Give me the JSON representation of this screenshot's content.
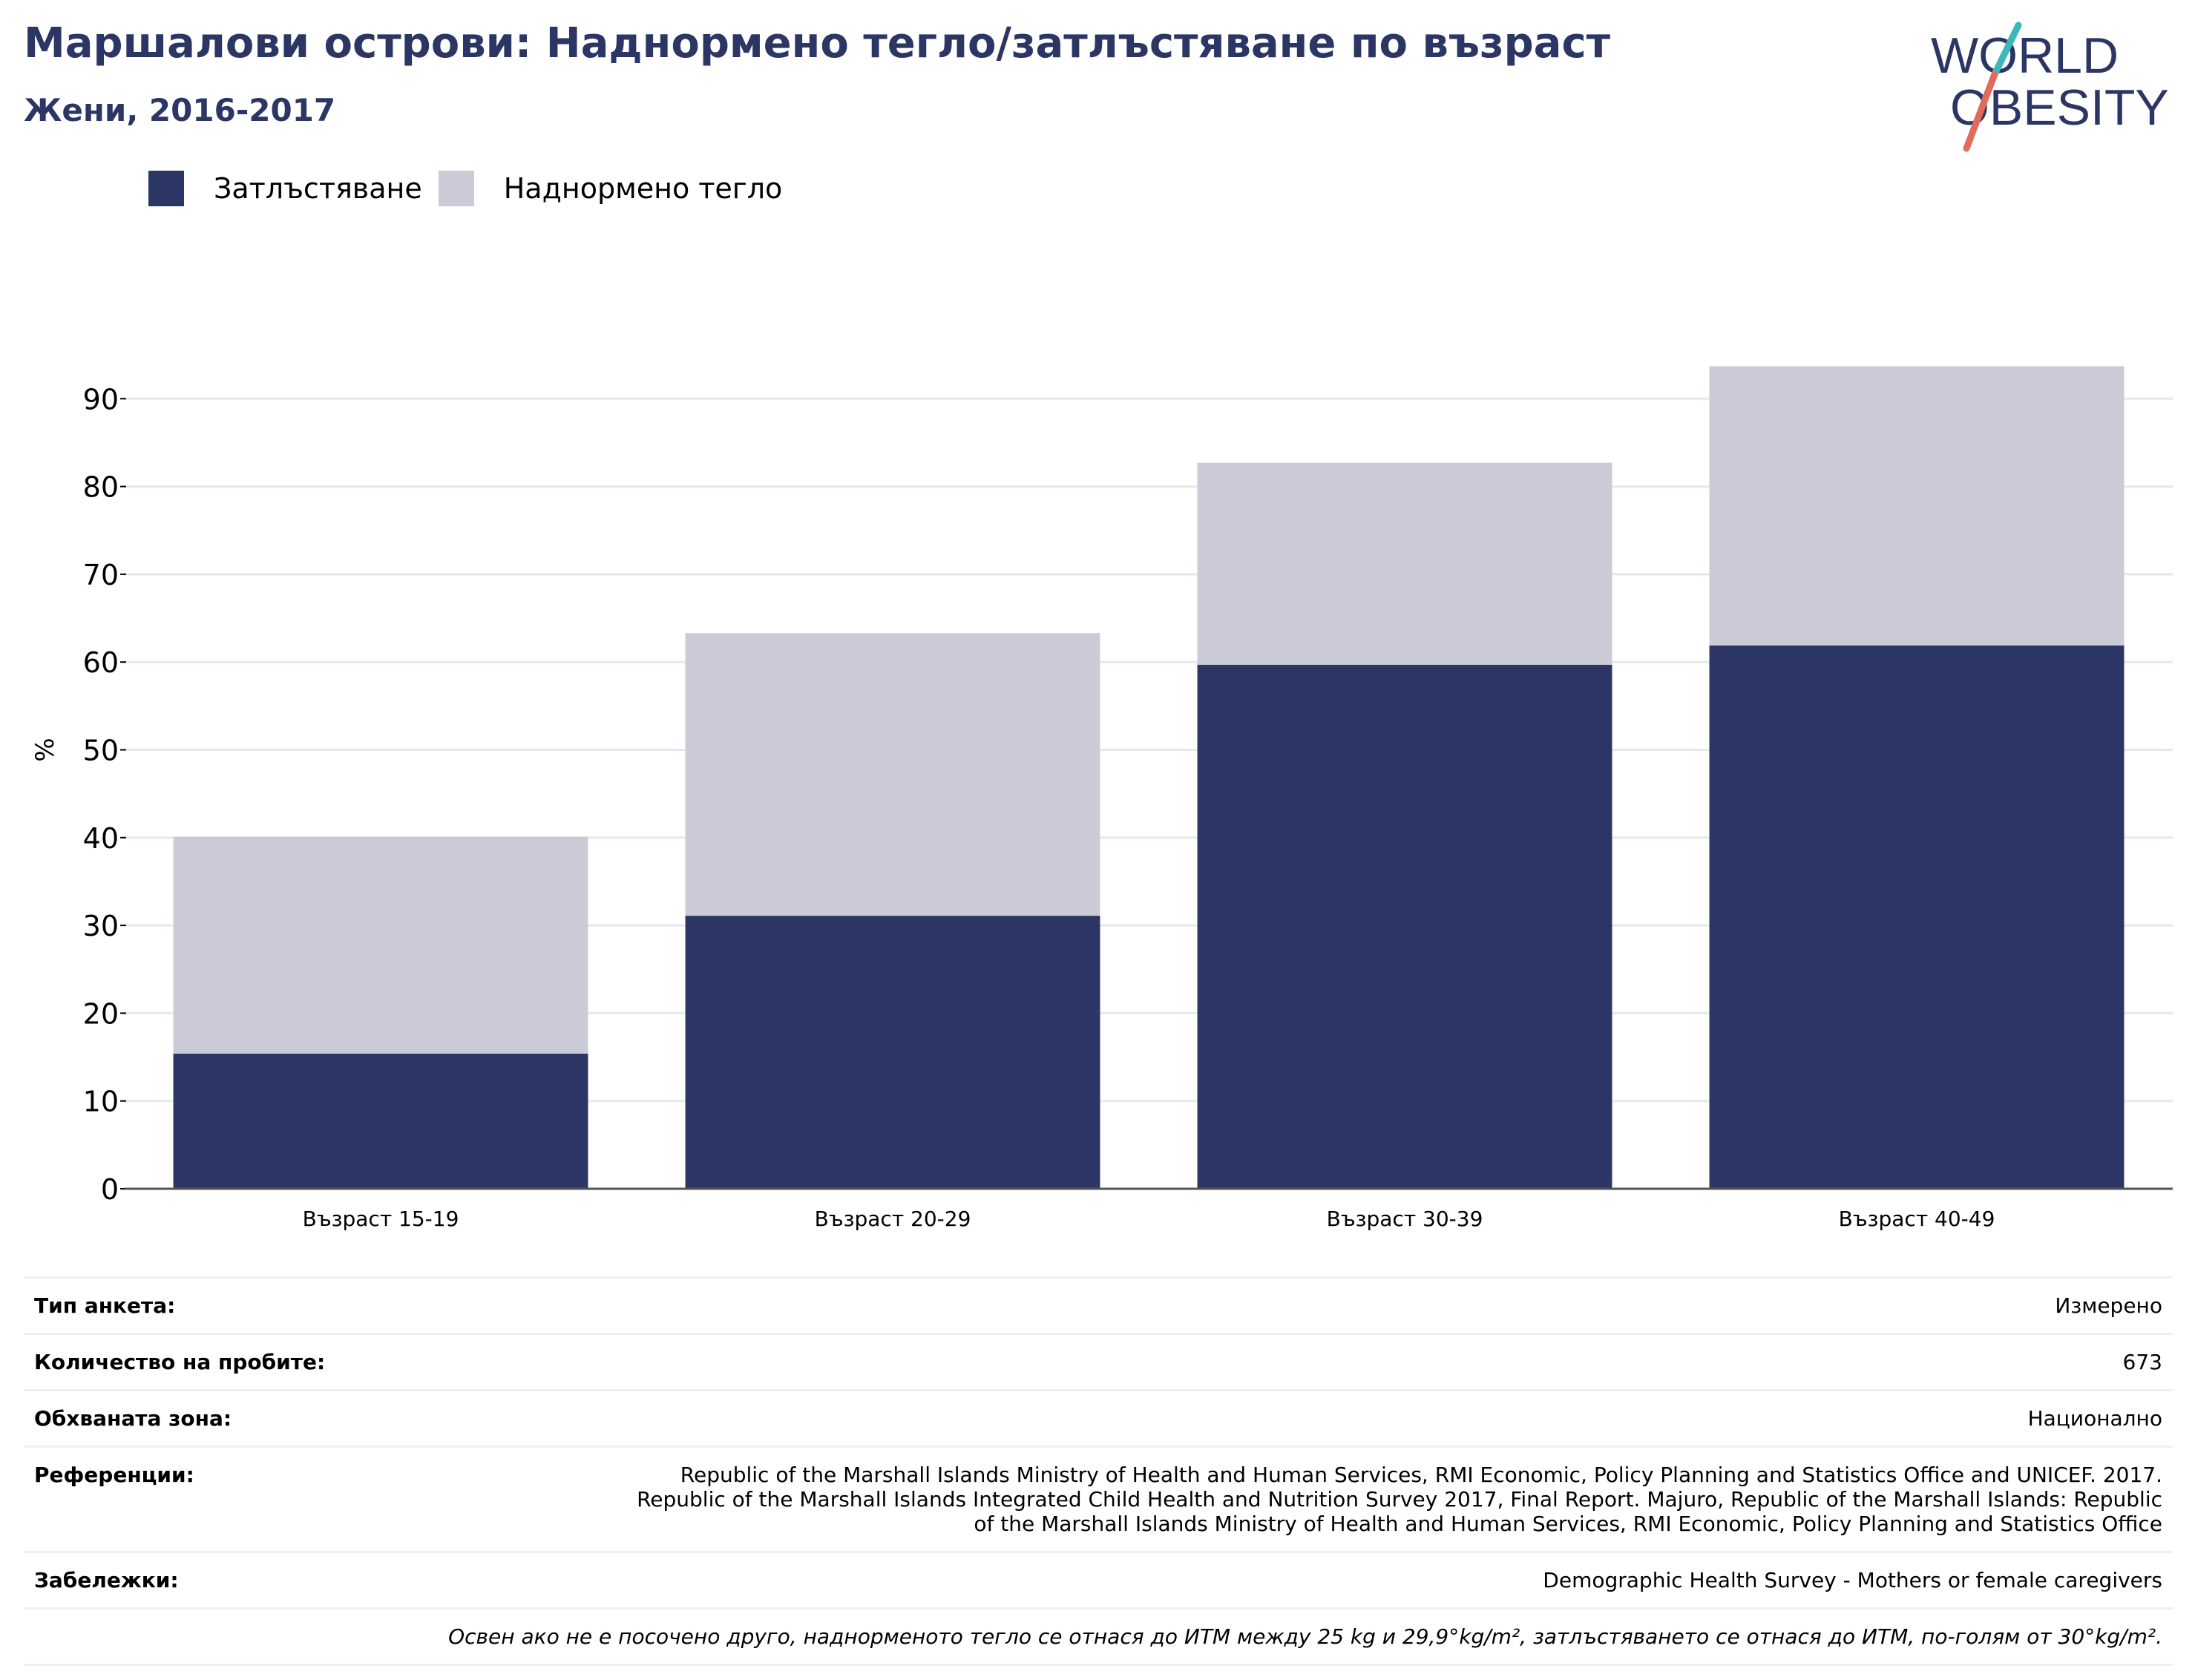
{
  "title": "Маршалови острови: Наднормено тегло/затлъстяване по възраст",
  "subtitle": "Жени, 2016-2017",
  "logo": {
    "line1": "WORLD",
    "line2": "OBESITY"
  },
  "colors": {
    "obesity": "#2b3664",
    "overweight": "#cacbd7",
    "title": "#2b3664",
    "grid": "#e6e8ef",
    "slash_teal": "#3bb8b9",
    "slash_red": "#e26a5a"
  },
  "legend": [
    {
      "label": "Затлъстяване",
      "color": "#2b3664"
    },
    {
      "label": "Наднормено тегло",
      "color": "#cacbd7"
    }
  ],
  "chart_data": {
    "type": "bar",
    "stacked": true,
    "categories": [
      "Възраст 15-19",
      "Възраст 20-29",
      "Възраст 30-39",
      "Възраст 40-49"
    ],
    "series": [
      {
        "name": "Затлъстяване",
        "values": [
          15.4,
          31.1,
          59.7,
          61.9
        ]
      },
      {
        "name": "Наднормено тегло",
        "values": [
          24.7,
          32.2,
          23.0,
          31.8
        ]
      }
    ],
    "ylabel": "%",
    "yticks": [
      0,
      10,
      20,
      30,
      40,
      50,
      60,
      70,
      80,
      90
    ],
    "ylim": [
      0,
      100
    ],
    "grid": true,
    "legend_position": "top-left"
  },
  "info": [
    {
      "label": "Тип анкета:",
      "value": "Измерено"
    },
    {
      "label": "Количество на пробите:",
      "value": "673"
    },
    {
      "label": "Обхваната зона:",
      "value": "Национално"
    },
    {
      "label": "Референции:",
      "value": "Republic of the Marshall Islands Ministry of Health and Human Services, RMI Economic, Policy Planning and Statistics Office and UNICEF. 2017. Republic of the Marshall Islands Integrated Child Health and Nutrition Survey 2017, Final Report. Majuro, Republic of the Marshall Islands: Republic of the Marshall Islands Ministry of Health and Human Services, RMI Economic, Policy Planning and Statistics Office"
    },
    {
      "label": "Забележки:",
      "value": "Demographic Health Survey - Mothers or female caregivers"
    }
  ],
  "note": "Освен ако не е посочено друго, наднорменото тегло се отнася до ИТМ между 25 kg и 29,9°kg/m², затлъстяването се отнася до ИТМ, по-голям от 30°kg/m²."
}
